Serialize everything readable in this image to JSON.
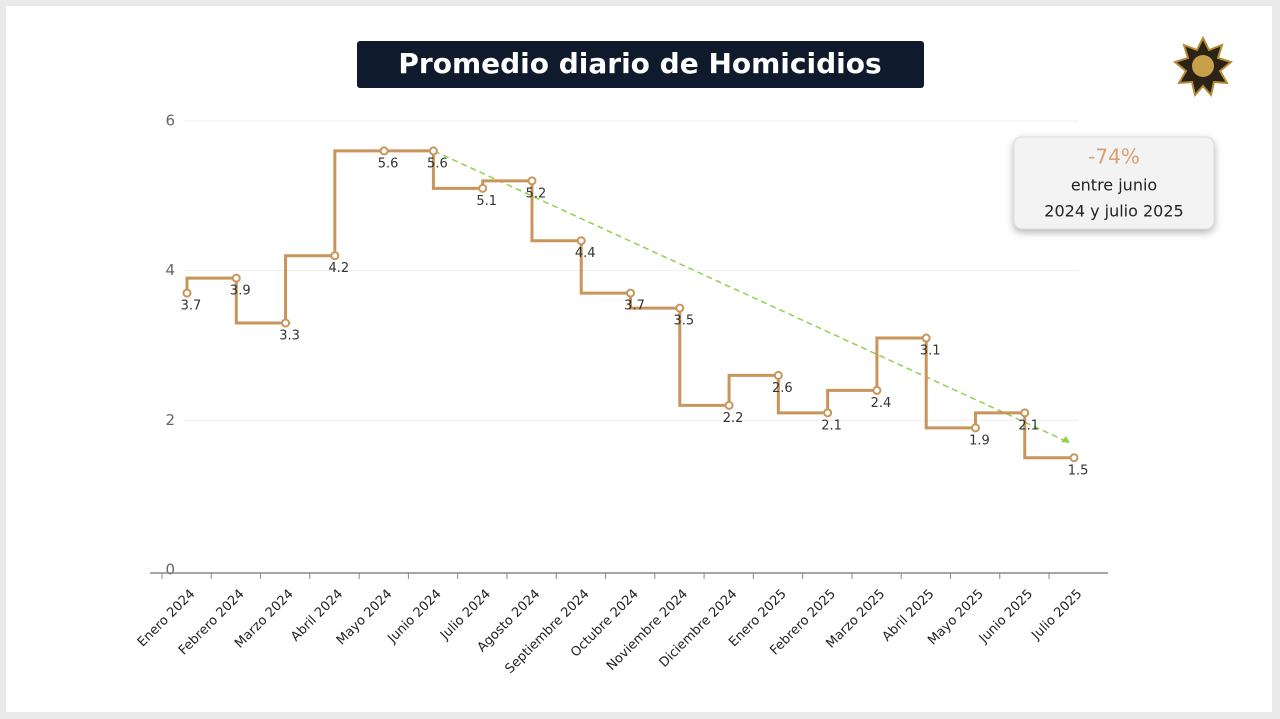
{
  "chart_data": {
    "type": "step",
    "title": "Promedio diario de Homicidios",
    "categories": [
      "Enero 2024",
      "Febrero 2024",
      "Marzo 2024",
      "Abril 2024",
      "Mayo 2024",
      "Junio 2024",
      "Julio 2024",
      "Agosto 2024",
      "Septiembre 2024",
      "Octubre 2024",
      "Noviembre 2024",
      "Diciembre 2024",
      "Enero 2025",
      "Febrero 2025",
      "Marzo 2025",
      "Abril 2025",
      "Mayo 2025",
      "Junio 2025",
      "Julio 2025"
    ],
    "values": [
      3.7,
      3.9,
      3.3,
      4.2,
      5.6,
      5.6,
      5.1,
      5.2,
      4.4,
      3.7,
      3.5,
      2.2,
      2.6,
      2.1,
      2.4,
      3.1,
      1.9,
      2.1,
      1.5
    ],
    "color": "#c8955a",
    "ylim": [
      0,
      6
    ],
    "yticks": [
      0,
      2,
      4,
      6
    ],
    "grid": true,
    "annotation": {
      "value": "-74%",
      "lines": [
        "entre junio",
        "2024 y julio 2025"
      ]
    }
  }
}
